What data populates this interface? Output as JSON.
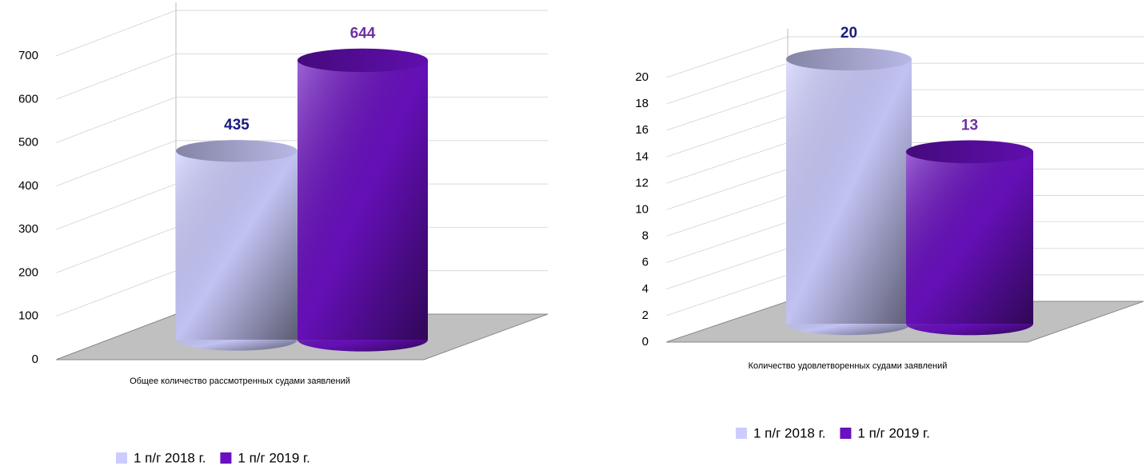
{
  "chart_data": [
    {
      "type": "bar",
      "categories": [
        "Общее количество рассмотренных судами заявлений"
      ],
      "series": [
        {
          "name": "1 п/г 2018 г.",
          "color": "#ccccff",
          "label_color": "#1a1a80",
          "values": [
            435
          ]
        },
        {
          "name": "1 п/г 2019 г.",
          "color": "#6a10c0",
          "label_color": "#7030a0",
          "values": [
            644
          ]
        }
      ],
      "ylim": [
        0,
        700
      ],
      "yticks": [
        0,
        100,
        200,
        300,
        400,
        500,
        600,
        700
      ],
      "grid": true
    },
    {
      "type": "bar",
      "categories": [
        "Количество удовлетворенных судами заявлений"
      ],
      "series": [
        {
          "name": "1 п/г 2018 г.",
          "color": "#ccccff",
          "label_color": "#1a1a80",
          "values": [
            20
          ]
        },
        {
          "name": "1 п/г 2019 г.",
          "color": "#6a10c0",
          "label_color": "#7030a0",
          "values": [
            13
          ]
        }
      ],
      "ylim": [
        0,
        20
      ],
      "yticks": [
        0,
        2,
        4,
        6,
        8,
        10,
        12,
        14,
        16,
        18,
        20
      ],
      "grid": true
    }
  ]
}
